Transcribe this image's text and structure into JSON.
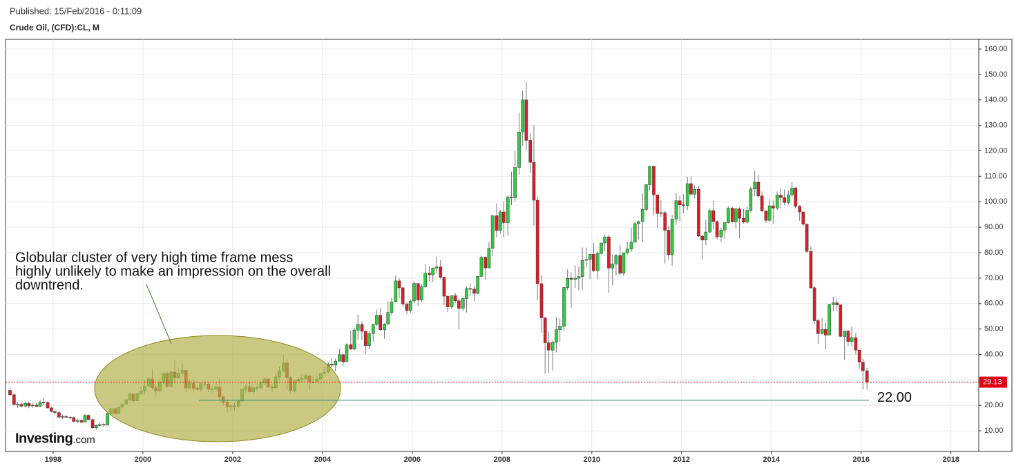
{
  "header": {
    "published": "Published: 15/Feb/2016 - 0:11:09",
    "symbol": "Crude Oil, (CFD):CL, M"
  },
  "chart_data": {
    "type": "candlestick",
    "x": [
      1997.04,
      1997.13,
      1997.21,
      1997.29,
      1997.38,
      1997.46,
      1997.54,
      1997.63,
      1997.71,
      1997.79,
      1997.88,
      1997.96,
      1998.04,
      1998.13,
      1998.21,
      1998.29,
      1998.38,
      1998.46,
      1998.54,
      1998.63,
      1998.71,
      1998.79,
      1998.88,
      1998.96,
      1999.04,
      1999.13,
      1999.21,
      1999.29,
      1999.38,
      1999.46,
      1999.54,
      1999.63,
      1999.71,
      1999.79,
      1999.88,
      1999.96,
      2000.04,
      2000.13,
      2000.21,
      2000.29,
      2000.38,
      2000.46,
      2000.54,
      2000.63,
      2000.71,
      2000.79,
      2000.88,
      2000.96,
      2001.04,
      2001.13,
      2001.21,
      2001.29,
      2001.38,
      2001.46,
      2001.54,
      2001.63,
      2001.71,
      2001.79,
      2001.88,
      2001.96,
      2002.04,
      2002.13,
      2002.21,
      2002.29,
      2002.38,
      2002.46,
      2002.54,
      2002.63,
      2002.71,
      2002.79,
      2002.88,
      2002.96,
      2003.04,
      2003.13,
      2003.21,
      2003.29,
      2003.38,
      2003.46,
      2003.54,
      2003.63,
      2003.71,
      2003.79,
      2003.88,
      2003.96,
      2004.04,
      2004.13,
      2004.21,
      2004.29,
      2004.38,
      2004.46,
      2004.54,
      2004.63,
      2004.71,
      2004.79,
      2004.88,
      2004.96,
      2005.04,
      2005.13,
      2005.21,
      2005.29,
      2005.38,
      2005.46,
      2005.54,
      2005.63,
      2005.71,
      2005.79,
      2005.88,
      2005.96,
      2006.04,
      2006.13,
      2006.21,
      2006.29,
      2006.38,
      2006.46,
      2006.54,
      2006.63,
      2006.71,
      2006.79,
      2006.88,
      2006.96,
      2007.04,
      2007.13,
      2007.21,
      2007.29,
      2007.38,
      2007.46,
      2007.54,
      2007.63,
      2007.71,
      2007.79,
      2007.88,
      2007.96,
      2008.04,
      2008.13,
      2008.21,
      2008.29,
      2008.38,
      2008.46,
      2008.54,
      2008.63,
      2008.71,
      2008.79,
      2008.88,
      2008.96,
      2009.04,
      2009.13,
      2009.21,
      2009.29,
      2009.38,
      2009.46,
      2009.54,
      2009.63,
      2009.71,
      2009.79,
      2009.88,
      2009.96,
      2010.04,
      2010.13,
      2010.21,
      2010.29,
      2010.38,
      2010.46,
      2010.54,
      2010.63,
      2010.71,
      2010.79,
      2010.88,
      2010.96,
      2011.04,
      2011.13,
      2011.21,
      2011.29,
      2011.38,
      2011.46,
      2011.54,
      2011.63,
      2011.71,
      2011.79,
      2011.88,
      2011.96,
      2012.04,
      2012.13,
      2012.21,
      2012.29,
      2012.38,
      2012.46,
      2012.54,
      2012.63,
      2012.71,
      2012.79,
      2012.88,
      2012.96,
      2013.04,
      2013.13,
      2013.21,
      2013.29,
      2013.38,
      2013.46,
      2013.54,
      2013.63,
      2013.71,
      2013.79,
      2013.88,
      2013.96,
      2014.04,
      2014.13,
      2014.21,
      2014.29,
      2014.38,
      2014.46,
      2014.54,
      2014.63,
      2014.71,
      2014.79,
      2014.88,
      2014.96,
      2015.04,
      2015.13,
      2015.21,
      2015.29,
      2015.38,
      2015.46,
      2015.54,
      2015.63,
      2015.71,
      2015.79,
      2015.88,
      2015.96,
      2016.04,
      2016.13
    ],
    "open": [
      25.9,
      24.2,
      20.3,
      20.4,
      19.7,
      20.8,
      19.8,
      20.1,
      19.6,
      21.2,
      21.1,
      19.0,
      17.6,
      17.2,
      15.4,
      15.6,
      15.3,
      15.2,
      13.7,
      14.1,
      13.4,
      16.1,
      14.4,
      11.2,
      12.1,
      12.5,
      12.3,
      16.8,
      18.7,
      16.8,
      19.3,
      20.5,
      22.1,
      24.5,
      21.8,
      24.6,
      25.6,
      27.6,
      30.4,
      26.9,
      25.7,
      29.0,
      32.5,
      27.4,
      33.1,
      30.8,
      32.7,
      33.8,
      26.8,
      28.7,
      26.7,
      26.3,
      28.5,
      28.4,
      26.3,
      26.4,
      27.2,
      23.4,
      21.2,
      19.4,
      19.8,
      19.5,
      21.7,
      26.3,
      27.3,
      25.3,
      26.9,
      27.0,
      28.9,
      30.4,
      27.2,
      26.9,
      31.2,
      33.5,
      36.6,
      31.0,
      25.8,
      29.6,
      30.2,
      30.5,
      31.6,
      29.2,
      29.1,
      30.4,
      32.5,
      33.1,
      36.2,
      35.8,
      37.4,
      39.9,
      37.1,
      43.8,
      42.1,
      49.6,
      51.8,
      49.1,
      43.5,
      48.2,
      51.8,
      55.4,
      49.7,
      51.97,
      56.5,
      60.6,
      68.9,
      66.2,
      59.8,
      57.3,
      61.0,
      67.9,
      61.4,
      66.6,
      71.9,
      71.3,
      73.9,
      74.4,
      70.3,
      62.9,
      58.7,
      63.1,
      61.1,
      58.1,
      62.0,
      65.9,
      65.7,
      64.0,
      70.7,
      78.2,
      74.0,
      81.7,
      94.5,
      88.7,
      96.0,
      91.8,
      101.8,
      101.6,
      113.5,
      127.4,
      140.0,
      124.1,
      115.5,
      100.6,
      67.8,
      54.4,
      44.6,
      41.7,
      44.8,
      49.7,
      51.1,
      66.3,
      69.9,
      69.5,
      69.96,
      70.6,
      77.0,
      77.3,
      79.4,
      72.9,
      79.7,
      83.8,
      86.2,
      73.97,
      75.6,
      78.9,
      71.9,
      79.97,
      81.4,
      84.1,
      91.4,
      92.2,
      96.97,
      106.7,
      113.9,
      102.7,
      95.4,
      95.7,
      88.8,
      79.2,
      93.2,
      100.4,
      98.8,
      98.5,
      107.1,
      103.0,
      104.9,
      86.5,
      84.96,
      88.1,
      96.5,
      92.2,
      86.2,
      88.9,
      91.8,
      97.5,
      92.1,
      97.2,
      93.5,
      91.97,
      96.6,
      105.0,
      107.7,
      102.3,
      96.4,
      92.7,
      98.4,
      97.5,
      102.6,
      101.6,
      99.7,
      102.7,
      105.4,
      98.2,
      96.0,
      91.2,
      80.5,
      66.2,
      53.3,
      48.2,
      49.8,
      47.6,
      59.6,
      60.3,
      59.5,
      47.1,
      49.2,
      45.1,
      46.6,
      41.7,
      37.0,
      33.6
    ],
    "high": [
      26.8,
      24.6,
      21.4,
      21.0,
      21.5,
      21.6,
      20.8,
      20.9,
      22.1,
      22.9,
      21.5,
      19.5,
      18.1,
      17.7,
      16.4,
      16.2,
      15.9,
      15.6,
      14.8,
      14.5,
      16.7,
      16.5,
      14.8,
      12.5,
      13.1,
      12.9,
      16.9,
      19.0,
      19.4,
      19.4,
      20.8,
      22.5,
      25.0,
      24.9,
      24.8,
      27.3,
      30.0,
      31.0,
      34.4,
      28.0,
      30.2,
      33.0,
      33.4,
      33.5,
      37.8,
      34.8,
      36.4,
      34.0,
      30.1,
      30.4,
      27.6,
      29.2,
      29.6,
      29.2,
      27.5,
      28.8,
      30.5,
      23.8,
      22.3,
      20.5,
      21.0,
      22.0,
      26.6,
      28.4,
      29.4,
      27.4,
      28.0,
      29.5,
      30.9,
      30.6,
      28.1,
      32.7,
      35.2,
      39.99,
      38.2,
      31.4,
      30.0,
      31.2,
      32.0,
      32.3,
      31.9,
      31.6,
      31.4,
      32.8,
      35.3,
      37.0,
      38.5,
      38.4,
      42.3,
      40.5,
      44.3,
      49.4,
      50.5,
      55.7,
      53.0,
      49.5,
      49.2,
      52.0,
      57.6,
      58.3,
      52.3,
      60.9,
      62.3,
      70.9,
      70.0,
      66.4,
      60.5,
      61.4,
      68.6,
      68.0,
      67.4,
      75.4,
      74.6,
      74.2,
      78.4,
      77.0,
      70.6,
      63.0,
      63.2,
      64.2,
      61.9,
      62.3,
      66.7,
      67.9,
      66.7,
      70.9,
      78.8,
      78.5,
      84.1,
      94.7,
      99.3,
      96.8,
      100.1,
      102.6,
      111.8,
      119.9,
      135.1,
      143.7,
      147.3,
      127.0,
      130.0,
      102.0,
      71.0,
      54.7,
      49.0,
      45.5,
      54.7,
      54.2,
      66.6,
      73.4,
      72.3,
      75.0,
      74.5,
      82.0,
      82.0,
      79.5,
      83.9,
      80.5,
      83.9,
      87.2,
      87.0,
      79.3,
      79.4,
      82.9,
      80.0,
      84.4,
      89.8,
      92.1,
      92.6,
      103.4,
      107.0,
      114.0,
      114.2,
      102.7,
      100.6,
      96.3,
      90.5,
      94.7,
      103.4,
      102.4,
      103.0,
      109.8,
      110.0,
      106.4,
      106.2,
      86.9,
      92.9,
      97.3,
      100.4,
      92.8,
      89.7,
      91.9,
      98.2,
      98.0,
      97.6,
      97.8,
      97.1,
      98.2,
      105.9,
      112.2,
      110.7,
      104.0,
      95.6,
      100.8,
      100.5,
      104.0,
      105.2,
      104.8,
      104.4,
      107.7,
      105.8,
      98.6,
      96.1,
      91.2,
      82.6,
      67.0,
      54.0,
      54.2,
      52.5,
      59.9,
      62.6,
      61.9,
      59.6,
      49.3,
      49.6,
      50.9,
      48.4,
      42.0,
      38.4,
      34.7
    ],
    "low": [
      23.6,
      19.9,
      19.0,
      19.0,
      19.2,
      18.9,
      19.0,
      19.2,
      19.3,
      20.1,
      18.7,
      17.2,
      16.3,
      15.1,
      14.6,
      15.0,
      14.5,
      13.3,
      13.1,
      12.9,
      13.3,
      14.1,
      10.7,
      10.4,
      11.6,
      11.4,
      12.1,
      16.1,
      16.2,
      16.7,
      18.9,
      20.3,
      21.9,
      21.0,
      21.7,
      24.0,
      24.2,
      27.2,
      26.0,
      23.5,
      25.2,
      28.2,
      26.8,
      27.0,
      29.1,
      30.4,
      31.5,
      25.2,
      26.6,
      25.8,
      25.6,
      25.4,
      27.1,
      25.2,
      24.9,
      25.6,
      21.5,
      19.9,
      17.1,
      17.7,
      17.9,
      19.1,
      21.4,
      24.9,
      24.8,
      24.6,
      25.5,
      26.3,
      28.0,
      26.6,
      25.1,
      26.4,
      30.0,
      33.0,
      26.0,
      24.8,
      24.9,
      28.6,
      29.2,
      29.9,
      25.9,
      28.6,
      28.8,
      29.8,
      32.2,
      32.5,
      34.8,
      33.5,
      37.2,
      35.4,
      37.0,
      41.8,
      41.6,
      45.8,
      45.8,
      40.2,
      42.1,
      45.0,
      51.2,
      49.2,
      46.2,
      51.5,
      55.5,
      60.5,
      62.1,
      58.8,
      55.9,
      56.2,
      60.1,
      59.0,
      60.6,
      66.1,
      68.9,
      68.4,
      72.0,
      69.6,
      59.5,
      56.6,
      57.8,
      60.2,
      49.9,
      57.1,
      56.5,
      63.0,
      61.0,
      63.6,
      70.3,
      69.3,
      74.0,
      78.6,
      86.0,
      87.4,
      86.1,
      86.8,
      98.7,
      100.1,
      110.6,
      122.0,
      120.4,
      111.3,
      90.5,
      61.3,
      48.5,
      32.4,
      32.7,
      33.6,
      40.8,
      45.0,
      49.3,
      65.2,
      58.3,
      66.1,
      65.1,
      65.4,
      74.5,
      69.5,
      72.4,
      69.5,
      78.9,
      80.5,
      64.2,
      67.1,
      71.0,
      71.1,
      70.8,
      79.1,
      80.3,
      84.0,
      85.1,
      84.1,
      96.2,
      104.4,
      94.6,
      89.7,
      94.0,
      75.7,
      77.1,
      74.95,
      91.0,
      92.5,
      95.4,
      96.8,
      102.1,
      101.5,
      86.1,
      77.3,
      83.0,
      87.6,
      89.3,
      85.3,
      84.1,
      85.4,
      91.4,
      91.8,
      89.6,
      85.6,
      91.5,
      91.4,
      95.8,
      102.2,
      101.6,
      96.1,
      91.8,
      92.1,
      91.2,
      96.8,
      97.4,
      98.6,
      98.9,
      101.9,
      97.4,
      92.5,
      90.4,
      79.8,
      65.7,
      52.0,
      44.2,
      47.9,
      42.0,
      47.6,
      57.0,
      57.3,
      46.7,
      37.8,
      43.2,
      43.2,
      40.0,
      34.5,
      26.2,
      26.1
    ],
    "close": [
      24.2,
      20.3,
      20.4,
      19.7,
      20.8,
      19.8,
      20.1,
      19.6,
      21.2,
      21.1,
      19.0,
      17.6,
      17.2,
      15.4,
      15.6,
      15.3,
      15.2,
      13.7,
      14.1,
      13.4,
      16.1,
      14.4,
      11.2,
      12.1,
      12.5,
      12.3,
      16.8,
      18.7,
      16.8,
      19.3,
      20.5,
      22.1,
      24.5,
      21.8,
      24.6,
      25.6,
      27.6,
      30.4,
      26.9,
      25.7,
      29.0,
      32.5,
      27.4,
      33.1,
      30.8,
      32.7,
      33.8,
      26.8,
      28.7,
      26.7,
      26.3,
      28.5,
      28.4,
      26.3,
      26.4,
      27.2,
      23.4,
      21.2,
      19.4,
      19.8,
      19.5,
      21.7,
      26.3,
      27.3,
      25.3,
      26.9,
      27.0,
      28.9,
      30.4,
      27.2,
      26.9,
      31.2,
      33.5,
      36.6,
      31.0,
      25.8,
      29.6,
      30.2,
      30.5,
      31.6,
      29.2,
      29.1,
      30.4,
      32.5,
      33.1,
      36.2,
      35.8,
      37.4,
      39.9,
      37.1,
      43.8,
      42.1,
      49.6,
      51.8,
      49.1,
      43.5,
      48.2,
      51.8,
      55.4,
      49.7,
      51.97,
      56.5,
      60.6,
      68.9,
      66.2,
      59.8,
      57.3,
      61.0,
      67.9,
      61.4,
      66.6,
      71.9,
      71.3,
      73.9,
      74.4,
      70.3,
      62.9,
      58.7,
      63.1,
      61.1,
      58.1,
      62.0,
      65.9,
      65.7,
      64.0,
      70.7,
      78.2,
      74.0,
      81.7,
      94.5,
      88.7,
      96.0,
      91.8,
      101.8,
      101.6,
      113.5,
      127.4,
      140.0,
      124.1,
      115.5,
      100.6,
      67.8,
      54.4,
      44.6,
      41.7,
      44.8,
      49.7,
      51.1,
      66.3,
      69.9,
      69.5,
      69.96,
      70.6,
      77.0,
      77.3,
      79.4,
      72.9,
      79.7,
      83.8,
      86.2,
      73.97,
      75.6,
      78.9,
      71.9,
      79.97,
      81.4,
      84.1,
      91.4,
      92.2,
      96.97,
      106.7,
      113.9,
      102.7,
      95.4,
      95.7,
      88.8,
      79.2,
      93.2,
      100.4,
      98.8,
      98.5,
      107.1,
      103.0,
      104.9,
      86.5,
      84.96,
      88.1,
      96.5,
      92.2,
      86.2,
      88.9,
      91.8,
      97.5,
      92.1,
      97.2,
      93.5,
      91.97,
      96.6,
      105.0,
      107.7,
      102.3,
      96.4,
      92.7,
      98.4,
      97.5,
      102.6,
      101.6,
      99.7,
      102.7,
      105.4,
      98.2,
      96.0,
      91.2,
      80.5,
      66.2,
      53.3,
      48.2,
      49.8,
      47.6,
      59.6,
      60.3,
      59.5,
      47.1,
      49.2,
      45.1,
      46.6,
      41.7,
      37.0,
      33.6,
      29.13
    ],
    "up_color": "#2ecc40",
    "down_color": "#dd1d26",
    "xlim": [
      1996.94,
      2018.62
    ],
    "xticks": [
      1998,
      2000,
      2002,
      2004,
      2006,
      2008,
      2010,
      2012,
      2014,
      2016,
      2018
    ],
    "ylim": [
      1.9,
      163.8
    ],
    "yticks": [
      {
        "value": 10,
        "label": "10.00"
      },
      {
        "value": 20,
        "label": "20.00"
      },
      {
        "value": 30,
        "label": "30.00"
      },
      {
        "value": 40,
        "label": "40.00"
      },
      {
        "value": 50,
        "label": "50.00"
      },
      {
        "value": 60,
        "label": "60.00"
      },
      {
        "value": 70,
        "label": "70.00"
      },
      {
        "value": 80,
        "label": "80.00"
      },
      {
        "value": 90,
        "label": "90.00"
      },
      {
        "value": 100,
        "label": "100.00"
      },
      {
        "value": 110,
        "label": "110.00"
      },
      {
        "value": 120,
        "label": "120.00"
      },
      {
        "value": 130,
        "label": "130.00"
      },
      {
        "value": 140,
        "label": "140.00"
      },
      {
        "value": 150,
        "label": "150.00"
      },
      {
        "value": 160,
        "label": "160.00"
      }
    ],
    "grid": true,
    "last_price": {
      "value": 29.13,
      "label": "29.13"
    },
    "support_level": {
      "value": 22,
      "label": "22.00"
    },
    "annotation": [
      "Globular cluster of very high time frame mess",
      "highly unlikely to make an impression on the overall",
      "downtrend."
    ],
    "logo": {
      "brand": "Investing",
      "suffix": ".com"
    }
  }
}
